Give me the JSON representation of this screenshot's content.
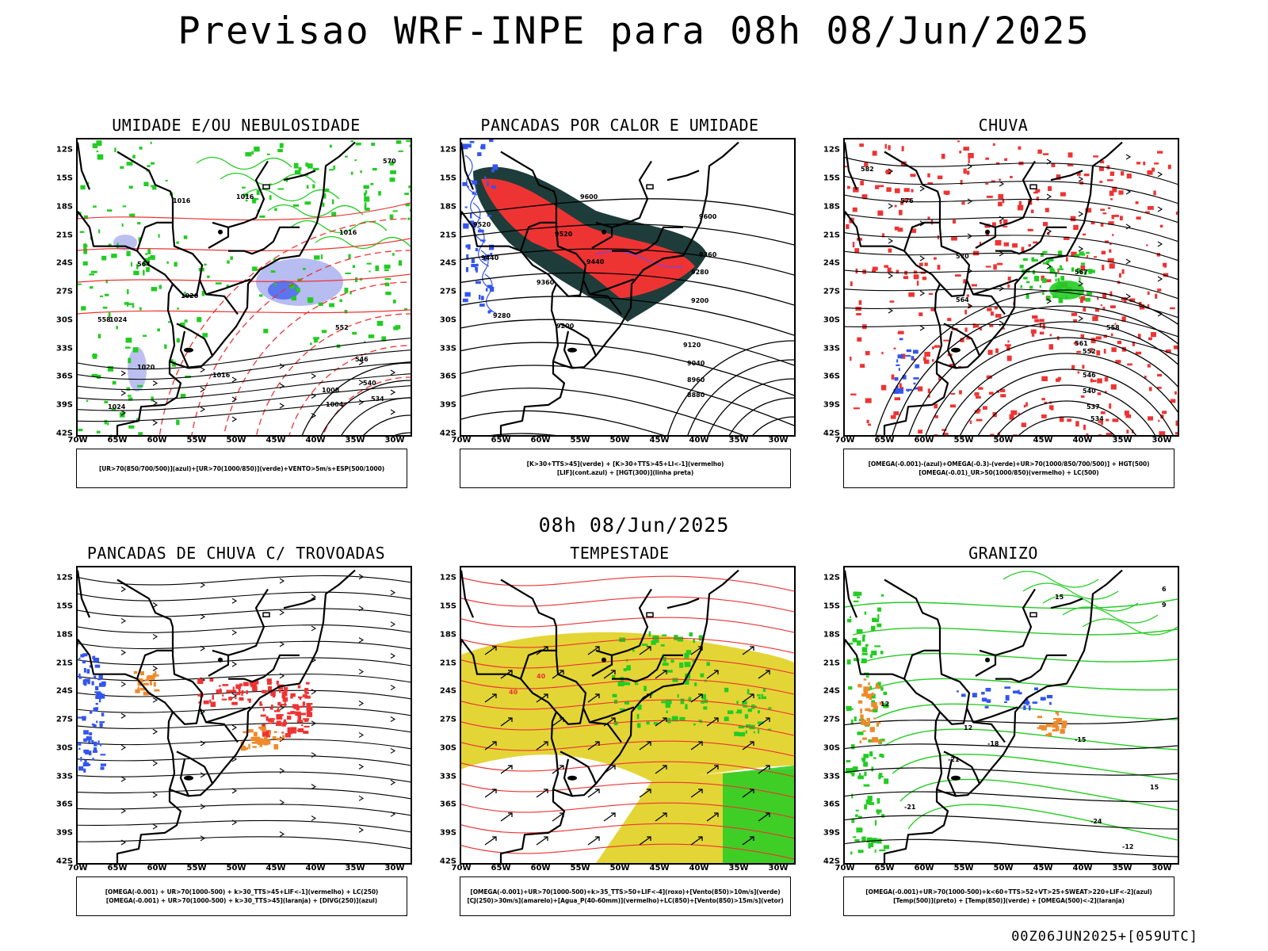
{
  "header": {
    "title": "Previsao WRF-INPE  para 08h 08/Jun/2025",
    "mid_title": "08h 08/Jun/2025",
    "footer": "00Z06JUN2025+[059UTC]"
  },
  "axes": {
    "lat_labels": [
      "12S",
      "15S",
      "18S",
      "21S",
      "24S",
      "27S",
      "30S",
      "33S",
      "36S",
      "39S",
      "42S"
    ],
    "lon_labels": [
      "70W",
      "65W",
      "60W",
      "55W",
      "50W",
      "45W",
      "40W",
      "35W",
      "30W"
    ]
  },
  "colors": {
    "blue": "#3355ee",
    "lightblue": "#aab0ee",
    "green": "#22cc22",
    "red": "#ee3333",
    "darkteal": "#1e3d3a",
    "orange": "#ee8a2a",
    "yellow": "#e0d020",
    "purple": "#8844cc"
  },
  "panels": [
    {
      "id": "umidade",
      "title": "UMIDADE E/OU NEBULOSIDADE",
      "legend": [
        "[UR>70(850/700/500)](azul)+[UR>70(1000/850)](verde)+VENTO>5m/s+ESP(500/1000)"
      ],
      "contour_labels": [
        "1016",
        "1016",
        "1016",
        "1020",
        "1024",
        "1016",
        "1020",
        "1024",
        "1008",
        "1004",
        "570",
        "564",
        "558",
        "552",
        "546",
        "540",
        "534"
      ],
      "contour_color_key": "black"
    },
    {
      "id": "pancadas-calor",
      "title": "PANCADAS POR CALOR E UMIDADE",
      "legend": [
        "[K>30+TTS>45](verde) + [K>30+TTS>45+LI<-1](vermelho)",
        "[LIF](cont.azul) + [HGT(300)](linha preta)"
      ],
      "contour_labels": [
        "9600",
        "9520",
        "9440",
        "9360",
        "9280",
        "9200",
        "9120",
        "9040",
        "8960",
        "8880",
        "9520",
        "9440",
        "9360",
        "9280",
        "9200",
        "9600"
      ],
      "contour_color_key": "black"
    },
    {
      "id": "chuva",
      "title": "CHUVA",
      "legend": [
        "[OMEGA(-0.001)-(azul)+OMEGA(-0.3)-(verde)+UR>70(1000/850/700/500)] + HGT(500)",
        "[OMEGA(-0.01)_UR>50(1000/850)(vermelho) + LC(500)"
      ],
      "contour_labels": [
        "582",
        "576",
        "570",
        "564",
        "558",
        "552",
        "546",
        "540",
        "537",
        "534",
        "561",
        "567"
      ],
      "contour_color_key": "black"
    },
    {
      "id": "pancadas-trovoadas",
      "title": "PANCADAS DE CHUVA C/ TROVOADAS",
      "legend": [
        "[OMEGA(-0.001) + UR>70(1000-500) + k>30_TTS>45+LIF<-1](vermelho) + LC(250)",
        "[OMEGA(-0.001) + UR>70(1000-500) + k>30_TTS>45](laranja) + [DIVG(250)](azul)"
      ],
      "contour_labels": [],
      "contour_color_key": "black"
    },
    {
      "id": "tempestade",
      "title": "TEMPESTADE",
      "legend": [
        "[OMEGA(-0.001)+UR>70(1000-500)+k>35_TTS>50+LIF<-4](roxo)+[Vento(850)>10m/s](verde)",
        "[CJ(250)>30m/s](amarelo)+[Agua_P(40-60mm)](vermelho)+LC(850)+[Vento(850)>15m/s](vetor)"
      ],
      "contour_labels": [
        "40",
        "40"
      ],
      "contour_color_key": "red"
    },
    {
      "id": "granizo",
      "title": "GRANIZO",
      "legend": [
        "[OMEGA(-0.001)+UR>70(1000-500)+k<60+TTS>52+VT>25+SWEAT>220+LIF<-2](azul)",
        "[Temp(500)](preto) + [Temp(850)](verde) + [OMEGA(500)<-2](laranja)"
      ],
      "contour_labels": [
        "15",
        "12",
        "-15",
        "-18",
        "-21",
        "-21",
        "-24",
        "-12",
        "15",
        "12",
        "6",
        "9"
      ],
      "contour_color_key": "black"
    }
  ]
}
